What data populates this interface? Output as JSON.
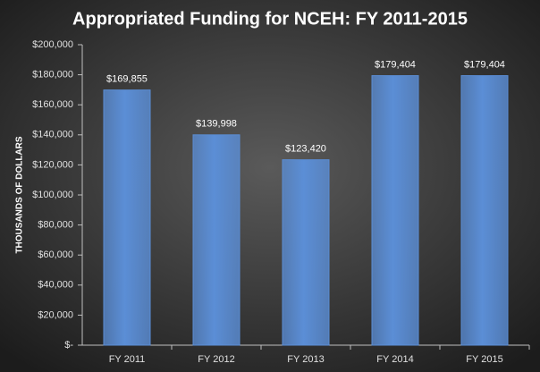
{
  "chart_data": {
    "type": "bar",
    "title": "Appropriated Funding for NCEH: FY 2011-2015",
    "y_label": "THOUSANDS OF DOLLARS",
    "categories": [
      "FY 2011",
      "FY 2012",
      "FY 2013",
      "FY 2014",
      "FY 2015"
    ],
    "values": [
      169855,
      139998,
      123420,
      179404,
      179404
    ],
    "value_labels": [
      "$169,855",
      "$139,998",
      "$123,420",
      "$179,404",
      "$179,404"
    ],
    "color": "#5b8ed6",
    "ylim": [
      0,
      200000
    ],
    "yticks": [
      {
        "value": 0,
        "label": "$-"
      },
      {
        "value": 20000,
        "label": "$20,000"
      },
      {
        "value": 40000,
        "label": "$40,000"
      },
      {
        "value": 60000,
        "label": "$60,000"
      },
      {
        "value": 80000,
        "label": "$80,000"
      },
      {
        "value": 100000,
        "label": "$100,000"
      },
      {
        "value": 120000,
        "label": "$120,000"
      },
      {
        "value": 140000,
        "label": "$140,000"
      },
      {
        "value": 160000,
        "label": "$160,000"
      },
      {
        "value": 180000,
        "label": "$180,000"
      },
      {
        "value": 200000,
        "label": "$200,000"
      }
    ],
    "grid": false
  }
}
